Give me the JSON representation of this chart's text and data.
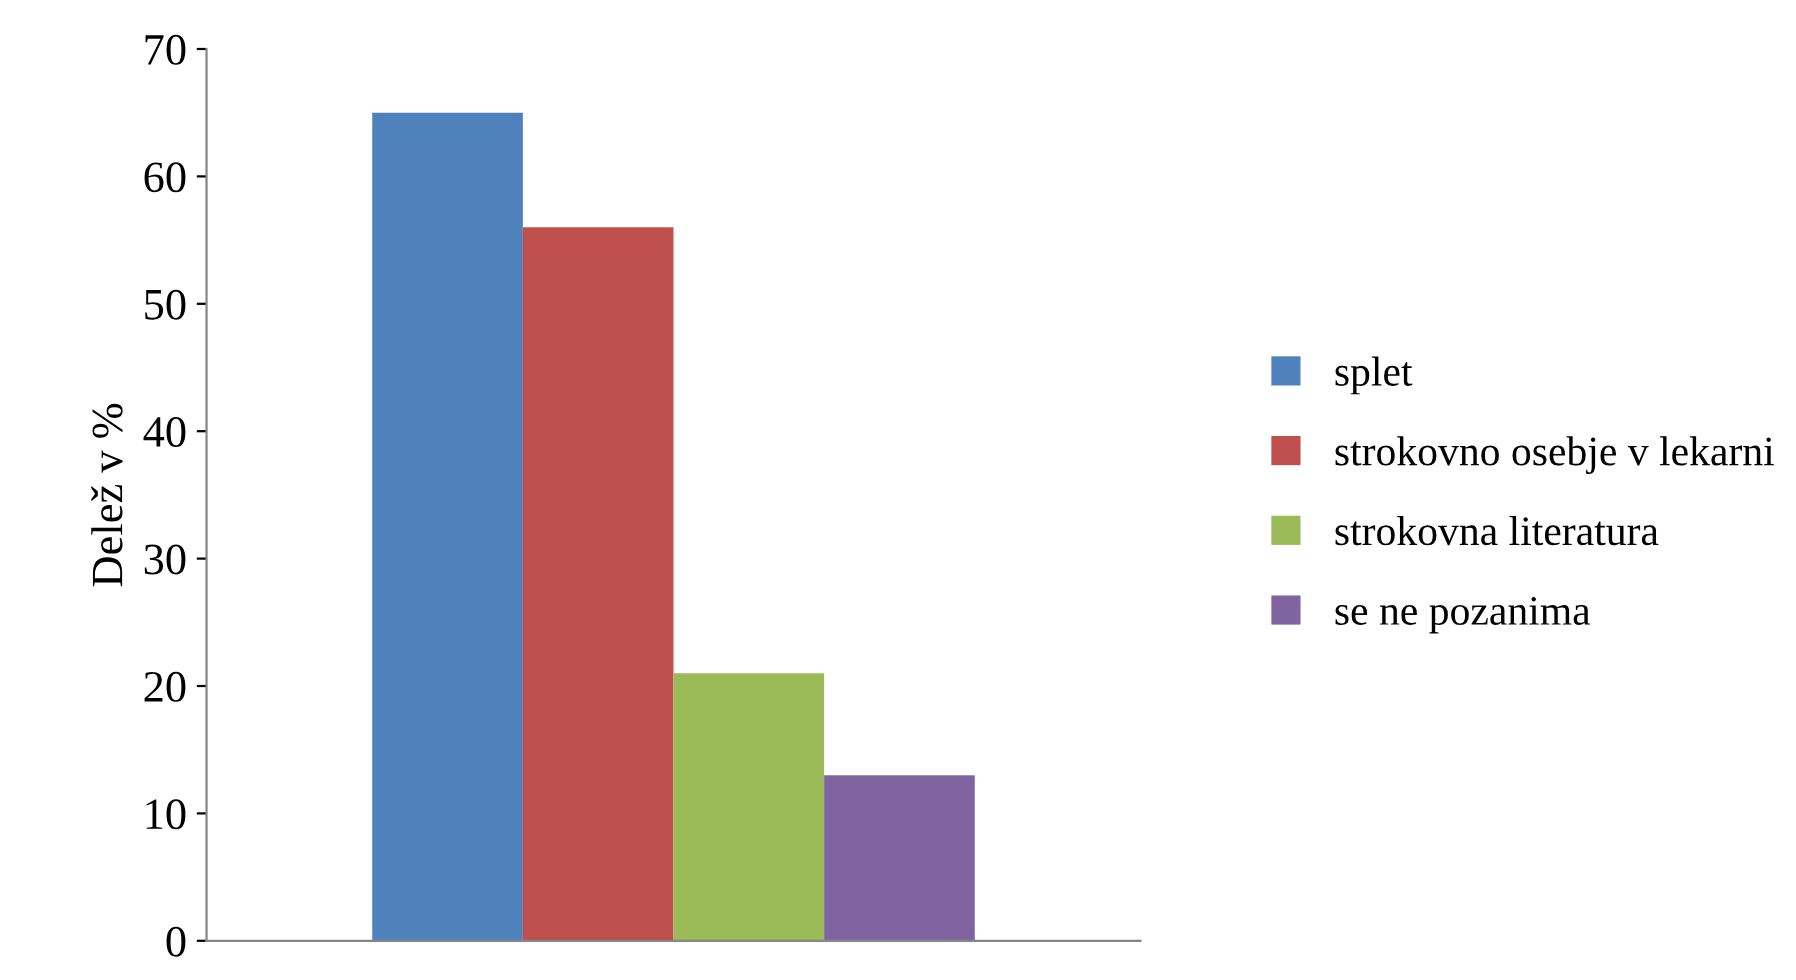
{
  "chart_data": {
    "type": "bar",
    "ylabel": "Delež v %",
    "categories": [
      null
    ],
    "series": [
      {
        "name": "splet",
        "color": "#4f81bd",
        "values": [
          65
        ]
      },
      {
        "name": "strokovno osebje v lekarni",
        "color": "#c0504d",
        "values": [
          56
        ]
      },
      {
        "name": "strokovna literatura",
        "color": "#9bbb59",
        "values": [
          21
        ]
      },
      {
        "name": "se ne pozanima",
        "color": "#8064a2",
        "values": [
          13
        ]
      }
    ],
    "ylim": [
      0,
      70
    ],
    "yticks": [
      0,
      10,
      20,
      30,
      40,
      50,
      60,
      70
    ],
    "grid": false,
    "legend": "right"
  }
}
